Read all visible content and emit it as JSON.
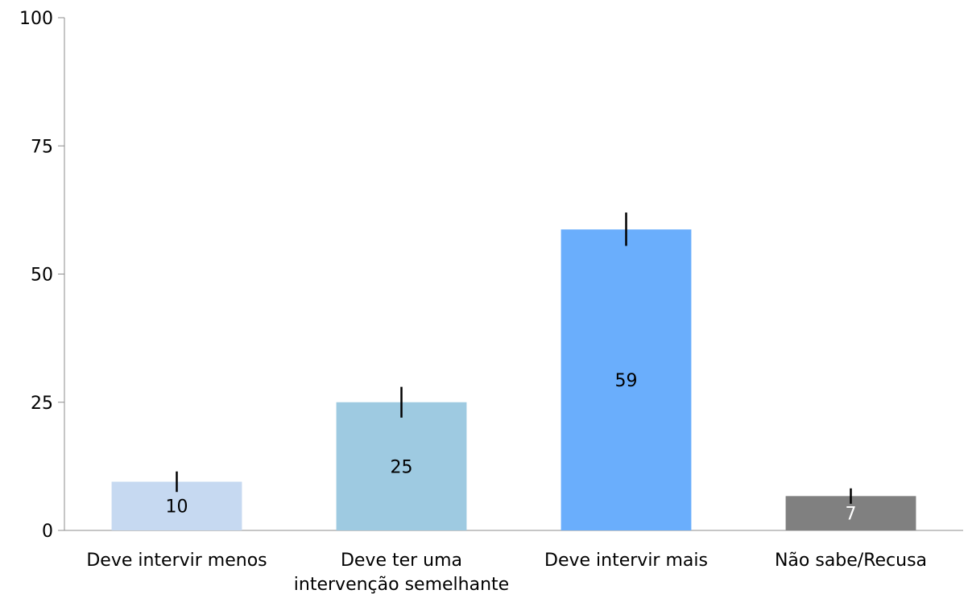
{
  "chart_data": {
    "type": "bar",
    "categories": [
      [
        "Deve intervir menos"
      ],
      [
        "Deve ter uma",
        "intervenção semelhante"
      ],
      [
        "Deve intervir mais"
      ],
      [
        "Não sabe/Recusa"
      ]
    ],
    "values": [
      9.5,
      25,
      58.7,
      6.7
    ],
    "data_labels": [
      "10",
      "25",
      "59",
      "7"
    ],
    "error_bars": [
      {
        "low": 7.5,
        "high": 11.5
      },
      {
        "low": 22,
        "high": 28
      },
      {
        "low": 55.5,
        "high": 62
      },
      {
        "low": 5.2,
        "high": 8.2
      }
    ],
    "bar_colors": [
      "#c6d9f1",
      "#9ecae1",
      "#6aaefc",
      "#808080"
    ],
    "label_colors": [
      "#000000",
      "#000000",
      "#000000",
      "#ffffff"
    ],
    "ylim": [
      0,
      100
    ],
    "yticks": [
      0,
      25,
      50,
      75,
      100
    ],
    "grid": false,
    "legend": "none",
    "title": "",
    "xlabel": "",
    "ylabel": ""
  }
}
